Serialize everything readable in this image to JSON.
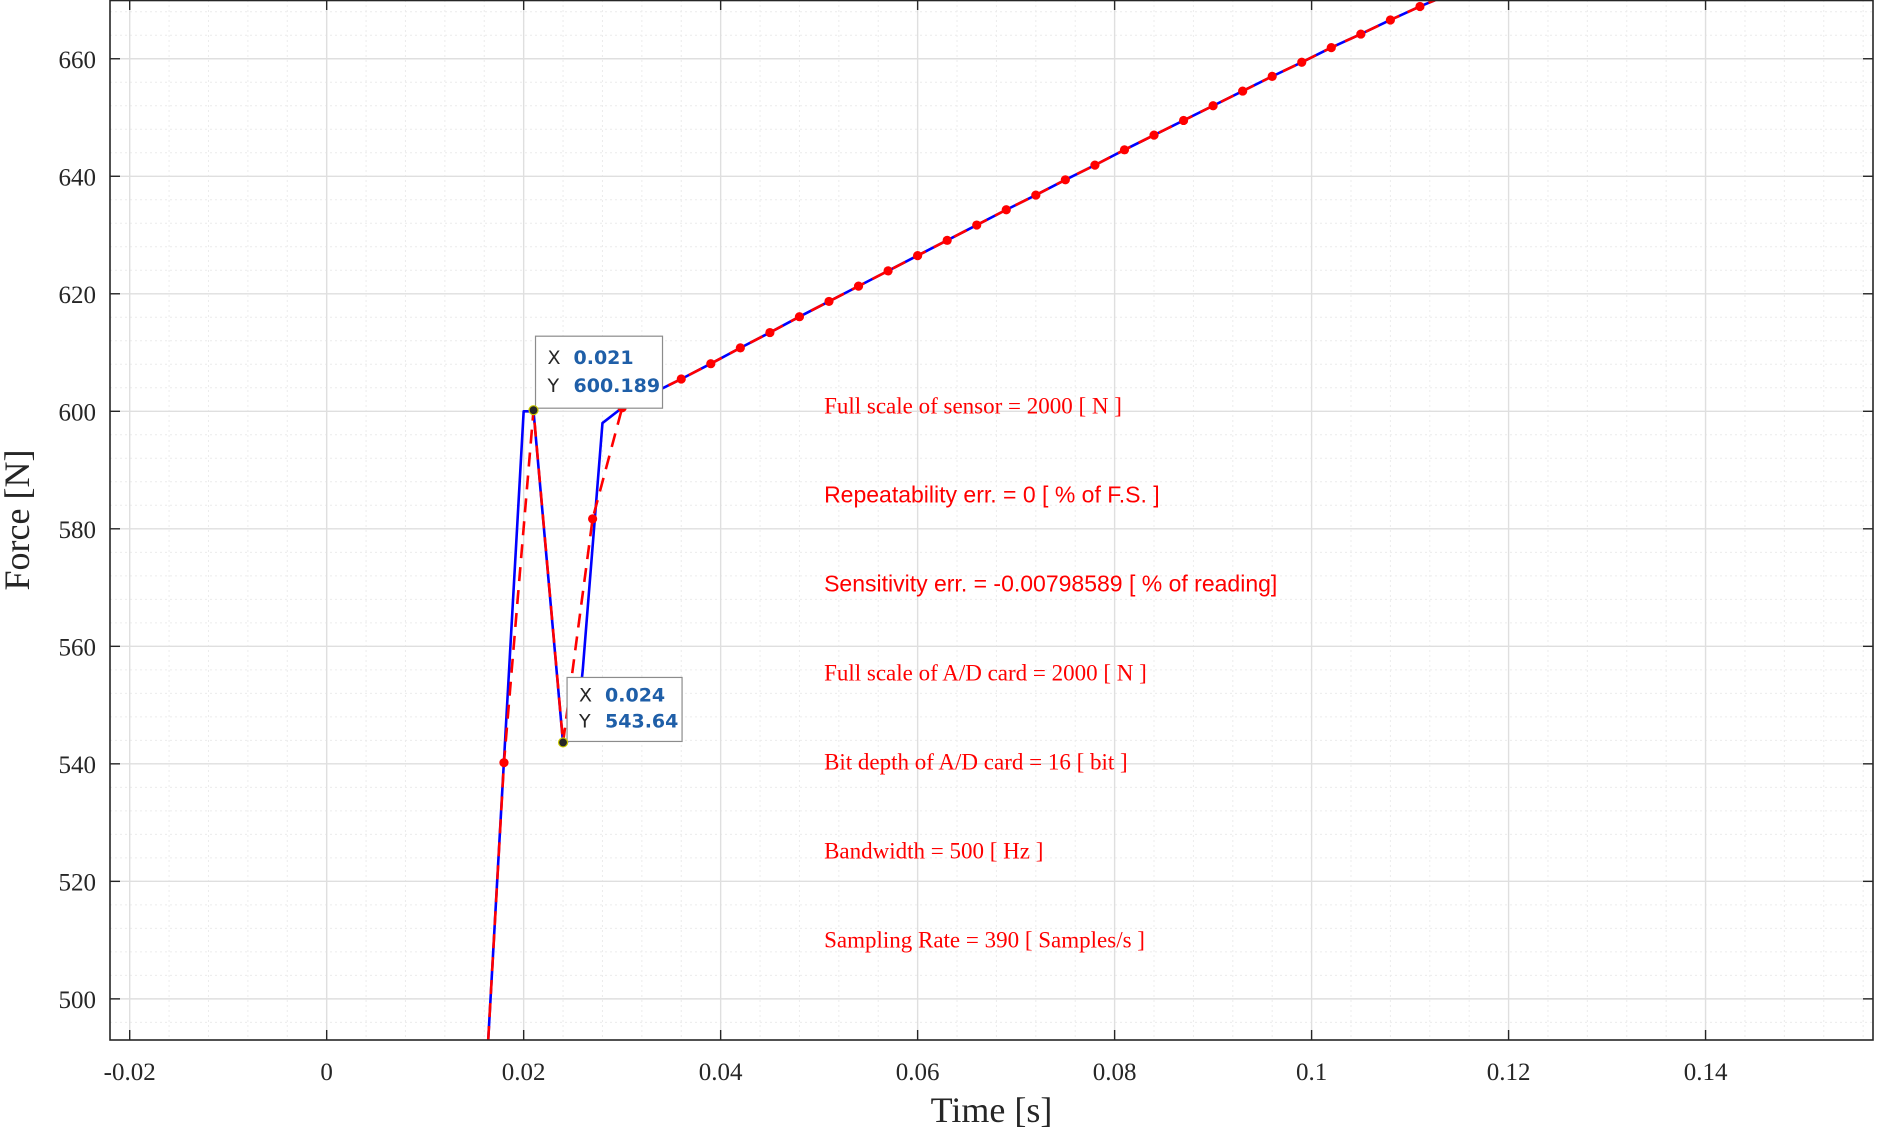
{
  "chart_data": {
    "type": "line",
    "title": "",
    "xlabel": "Time [s]",
    "ylabel": "Force [N]",
    "xlim": [
      -0.022,
      0.157
    ],
    "ylim": [
      493,
      670
    ],
    "xticks": [
      -0.02,
      0,
      0.02,
      0.04,
      0.06,
      0.08,
      0.1,
      0.12,
      0.14
    ],
    "xtick_labels": [
      "-0.02",
      "0",
      "0.02",
      "0.04",
      "0.06",
      "0.08",
      "0.1",
      "0.12",
      "0.14"
    ],
    "yticks": [
      500,
      520,
      540,
      560,
      580,
      600,
      620,
      640,
      660
    ],
    "ytick_labels": [
      "500",
      "520",
      "540",
      "560",
      "580",
      "600",
      "620",
      "640",
      "660"
    ],
    "grid": true,
    "minor_grid": true,
    "series": [
      {
        "color": "#0000ff",
        "style": "solid",
        "x": [
          0.0164,
          0.02,
          0.021,
          0.024,
          0.0253,
          0.026,
          0.028,
          0.03,
          0.033,
          0.036,
          0.039,
          0.042,
          0.045,
          0.048,
          0.051,
          0.054,
          0.057,
          0.06,
          0.063,
          0.066,
          0.069,
          0.072,
          0.075,
          0.078,
          0.081,
          0.084,
          0.087,
          0.09,
          0.093,
          0.096,
          0.099,
          0.102,
          0.105,
          0.108,
          0.111,
          0.114
        ],
        "y": [
          493.0,
          600.0,
          600.0,
          543.5,
          544.5,
          556.0,
          598.0,
          600.6,
          603.0,
          605.5,
          608.1,
          610.8,
          613.4,
          616.1,
          618.7,
          621.3,
          623.9,
          626.5,
          629.1,
          631.7,
          634.3,
          636.8,
          639.4,
          641.9,
          644.5,
          647.0,
          649.5,
          652.0,
          654.5,
          657.0,
          659.4,
          661.9,
          664.2,
          666.6,
          668.9,
          671.0
        ]
      },
      {
        "color": "#ff0000",
        "style": "dashed",
        "marker": "o",
        "x": [
          0.0164,
          0.018,
          0.021,
          0.024,
          0.027,
          0.03,
          0.033,
          0.036,
          0.039,
          0.042,
          0.045,
          0.048,
          0.051,
          0.054,
          0.057,
          0.06,
          0.063,
          0.066,
          0.069,
          0.072,
          0.075,
          0.078,
          0.081,
          0.084,
          0.087,
          0.09,
          0.093,
          0.096,
          0.099,
          0.102,
          0.105,
          0.108,
          0.111,
          0.114
        ],
        "y": [
          493.0,
          540.2,
          600.189,
          543.64,
          581.7,
          600.6,
          603.0,
          605.5,
          608.1,
          610.8,
          613.4,
          616.1,
          618.7,
          621.3,
          623.9,
          626.5,
          629.1,
          631.7,
          634.3,
          636.8,
          639.4,
          641.9,
          644.5,
          647.0,
          649.5,
          652.0,
          654.5,
          657.0,
          659.4,
          661.9,
          664.2,
          666.6,
          668.9,
          671.0
        ],
        "marker_indices": [
          1,
          2,
          3,
          4,
          5,
          6,
          7,
          8,
          9,
          10,
          11,
          12,
          13,
          14,
          15,
          16,
          17,
          18,
          19,
          20,
          21,
          22,
          23,
          24,
          25,
          26,
          27,
          28,
          29,
          30,
          31,
          32
        ]
      }
    ],
    "datatips": [
      {
        "x_key": "X",
        "x_value": "0.021",
        "y_key": "Y",
        "y_value": "600.189",
        "x": 0.021,
        "y": 600.189
      },
      {
        "x_key": "X",
        "x_value": "0.024",
        "y_key": "Y",
        "y_value": "543.64",
        "x": 0.024,
        "y": 543.64
      }
    ],
    "annotations": [
      {
        "text": "Full scale of sensor = 2000 [ N ]",
        "font": "serif"
      },
      {
        "text": "Repeatability err. = 0 [ % of F.S. ]",
        "font": "sans"
      },
      {
        "text": "Sensitivity err. = -0.00798589 [ % of reading]",
        "font": "sans"
      },
      {
        "text": "Full scale of A/D card = 2000 [ N ]",
        "font": "serif"
      },
      {
        "text": "Bit depth of A/D card = 16 [ bit ]",
        "font": "serif"
      },
      {
        "text": "Bandwidth = 500 [ Hz ]",
        "font": "serif"
      },
      {
        "text": "Sampling Rate = 390 [ Samples/s ]",
        "font": "serif"
      }
    ],
    "colors": {
      "axes": "#262626",
      "grid": "#dfdfdf",
      "minor_grid": "#ececec",
      "annotation": "#ff0000",
      "datatip_value": "#1f5fa8"
    }
  }
}
